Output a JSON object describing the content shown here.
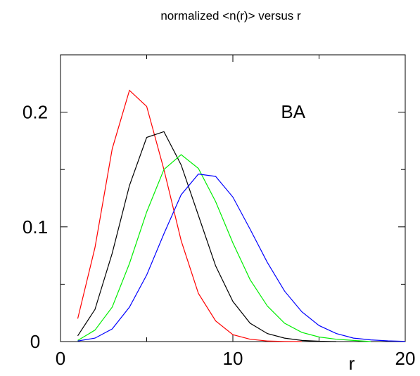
{
  "chart_data": {
    "type": "line",
    "title": "normalized <n(r)> versus r",
    "xlabel": "r",
    "ylabel": "",
    "xlim": [
      0,
      20
    ],
    "ylim": [
      0,
      0.25
    ],
    "x_ticks": [
      0,
      10,
      20
    ],
    "x_tick_labels": [
      "0",
      "10",
      "20"
    ],
    "x_minor_ticks": [
      5,
      15
    ],
    "y_ticks": [
      0,
      0.1,
      0.2
    ],
    "y_tick_labels": [
      "0",
      "0.1",
      "0.2"
    ],
    "y_minor_ticks": [
      0.05,
      0.15
    ],
    "annotations": [
      {
        "text": "BA",
        "x": 13.5,
        "y": 0.195
      }
    ],
    "grid": false,
    "series": [
      {
        "color": "#ff0000",
        "x": [
          1,
          2,
          3,
          4,
          5,
          6,
          7,
          8,
          9,
          10,
          11,
          12,
          13,
          14
        ],
        "y": [
          0.02,
          0.082,
          0.168,
          0.219,
          0.205,
          0.15,
          0.088,
          0.042,
          0.018,
          0.006,
          0.002,
          0.0005,
          0.0001,
          0
        ]
      },
      {
        "color": "#000000",
        "x": [
          1,
          2,
          3,
          4,
          5,
          6,
          7,
          8,
          9,
          10,
          11,
          12,
          13,
          14,
          15,
          16
        ],
        "y": [
          0.005,
          0.028,
          0.077,
          0.136,
          0.178,
          0.183,
          0.154,
          0.11,
          0.066,
          0.035,
          0.016,
          0.007,
          0.003,
          0.001,
          0.0003,
          0
        ]
      },
      {
        "color": "#00ee00",
        "x": [
          1,
          2,
          3,
          4,
          5,
          6,
          7,
          8,
          9,
          10,
          11,
          12,
          13,
          14,
          15,
          16,
          17,
          18
        ],
        "y": [
          0.001,
          0.01,
          0.03,
          0.068,
          0.113,
          0.15,
          0.163,
          0.151,
          0.122,
          0.086,
          0.054,
          0.031,
          0.016,
          0.008,
          0.004,
          0.002,
          0.001,
          0
        ]
      },
      {
        "color": "#0000ff",
        "x": [
          1,
          2,
          3,
          4,
          5,
          6,
          7,
          8,
          9,
          10,
          11,
          12,
          13,
          14,
          15,
          16,
          17,
          18,
          19,
          20
        ],
        "y": [
          0.0005,
          0.003,
          0.011,
          0.03,
          0.058,
          0.094,
          0.128,
          0.146,
          0.144,
          0.126,
          0.098,
          0.069,
          0.044,
          0.026,
          0.014,
          0.007,
          0.003,
          0.0015,
          0.0006,
          0.0002
        ]
      }
    ]
  }
}
